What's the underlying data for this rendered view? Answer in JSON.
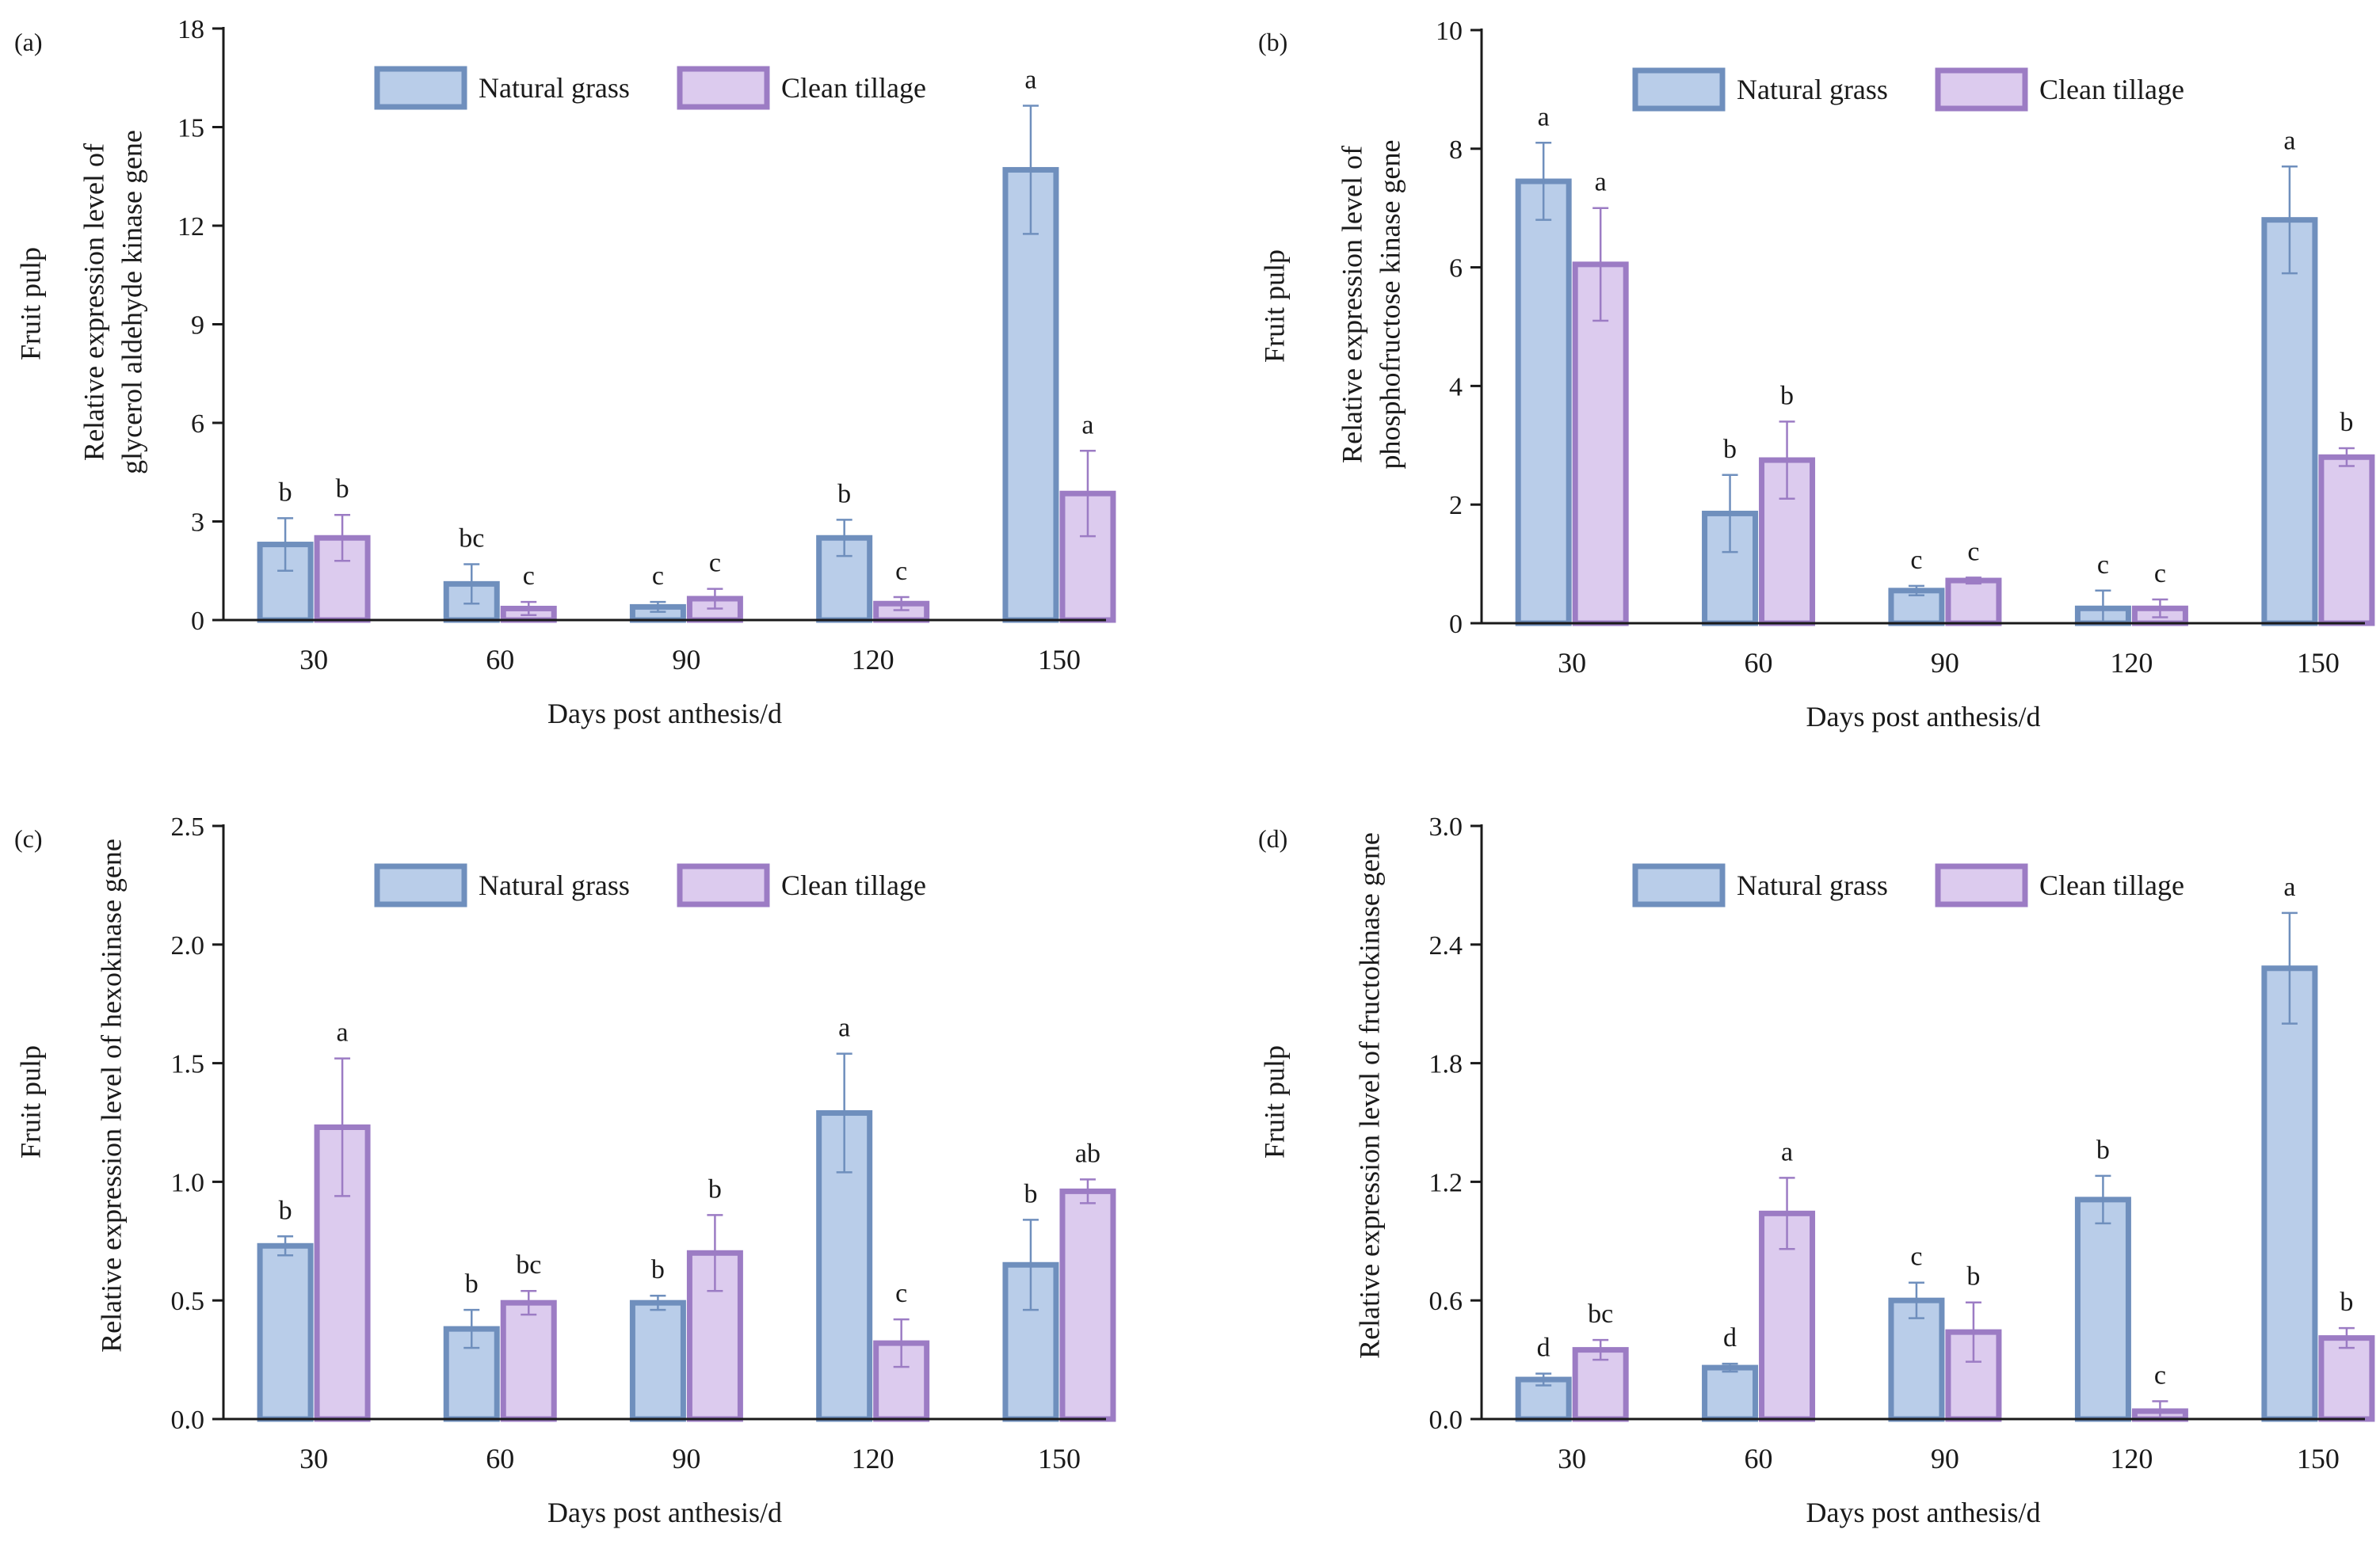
{
  "colors": {
    "natural_fill": "#b9cde9",
    "natural_stroke": "#6f8fbd",
    "clean_fill": "#dccbee",
    "clean_stroke": "#9c7cc4",
    "natural_err": "#6f8fbd",
    "clean_err": "#9c7cc4"
  },
  "chart_data": [
    {
      "type": "bar",
      "panel_label": "(a)",
      "side_label": "Fruit pulp",
      "ylabel_lines": [
        "Relative expression level of",
        "glycerol aldehyde kinase gene"
      ],
      "xlabel": "Days post anthesis/d",
      "categories": [
        "30",
        "60",
        "90",
        "120",
        "150"
      ],
      "ylim": [
        0,
        18
      ],
      "yticks": [
        0,
        3,
        6,
        9,
        12,
        15,
        18
      ],
      "ytick_labels": [
        "0",
        "3",
        "6",
        "9",
        "12",
        "15",
        "18"
      ],
      "legend": "top",
      "series": [
        {
          "name": "Natural grass",
          "values": [
            2.3,
            1.1,
            0.4,
            2.5,
            13.7
          ],
          "errors": [
            0.8,
            0.6,
            0.15,
            0.55,
            1.95
          ],
          "letters": [
            "b",
            "bc",
            "c",
            "b",
            "a"
          ]
        },
        {
          "name": "Clean tillage",
          "values": [
            2.5,
            0.35,
            0.65,
            0.5,
            3.85
          ],
          "errors": [
            0.7,
            0.2,
            0.3,
            0.2,
            1.3
          ],
          "letters": [
            "b",
            "c",
            "c",
            "c",
            "a"
          ]
        }
      ]
    },
    {
      "type": "bar",
      "panel_label": "(b)",
      "side_label": "Fruit pulp",
      "ylabel_lines": [
        "Relative expression level of",
        "phosphofructose kinase gene"
      ],
      "xlabel": "Days post anthesis/d",
      "categories": [
        "30",
        "60",
        "90",
        "120",
        "150"
      ],
      "ylim": [
        0,
        10
      ],
      "yticks": [
        0,
        2,
        4,
        6,
        8,
        10
      ],
      "ytick_labels": [
        "0",
        "2",
        "4",
        "6",
        "8",
        "10"
      ],
      "legend": "top",
      "series": [
        {
          "name": "Natural grass",
          "values": [
            7.45,
            1.85,
            0.55,
            0.25,
            6.8
          ],
          "errors": [
            0.65,
            0.65,
            0.08,
            0.3,
            0.9
          ],
          "letters": [
            "a",
            "b",
            "c",
            "c",
            "a"
          ]
        },
        {
          "name": "Clean tillage",
          "values": [
            6.05,
            2.75,
            0.72,
            0.25,
            2.8
          ],
          "errors": [
            0.95,
            0.65,
            0.05,
            0.15,
            0.15
          ],
          "letters": [
            "a",
            "b",
            "c",
            "c",
            "b"
          ]
        }
      ]
    },
    {
      "type": "bar",
      "panel_label": "(c)",
      "side_label": "Fruit pulp",
      "ylabel_lines": [
        "Relative expression level of hexokinase gene"
      ],
      "xlabel": "Days post anthesis/d",
      "categories": [
        "30",
        "60",
        "90",
        "120",
        "150"
      ],
      "ylim": [
        0,
        2.5
      ],
      "yticks": [
        0,
        0.5,
        1.0,
        1.5,
        2.0,
        2.5
      ],
      "ytick_labels": [
        "0.0",
        "0.5",
        "1.0",
        "1.5",
        "2.0",
        "2.5"
      ],
      "legend": "top",
      "series": [
        {
          "name": "Natural grass",
          "values": [
            0.73,
            0.38,
            0.49,
            1.29,
            0.65
          ],
          "errors": [
            0.04,
            0.08,
            0.03,
            0.25,
            0.19
          ],
          "letters": [
            "b",
            "b",
            "b",
            "a",
            "b"
          ]
        },
        {
          "name": "Clean tillage",
          "values": [
            1.23,
            0.49,
            0.7,
            0.32,
            0.96
          ],
          "errors": [
            0.29,
            0.05,
            0.16,
            0.1,
            0.05
          ],
          "letters": [
            "a",
            "bc",
            "b",
            "c",
            "ab"
          ]
        }
      ]
    },
    {
      "type": "bar",
      "panel_label": "(d)",
      "side_label": "Fruit pulp",
      "ylabel_lines": [
        "Relative expression level of fructokinase gene"
      ],
      "xlabel": "Days post anthesis/d",
      "categories": [
        "30",
        "60",
        "90",
        "120",
        "150"
      ],
      "ylim": [
        0,
        3.0
      ],
      "yticks": [
        0,
        0.6,
        1.2,
        1.8,
        2.4,
        3.0
      ],
      "ytick_labels": [
        "0.0",
        "0.6",
        "1.2",
        "1.8",
        "2.4",
        "3.0"
      ],
      "legend": "top",
      "series": [
        {
          "name": "Natural grass",
          "values": [
            0.2,
            0.26,
            0.6,
            1.11,
            2.28
          ],
          "errors": [
            0.03,
            0.02,
            0.09,
            0.12,
            0.28
          ],
          "letters": [
            "d",
            "d",
            "c",
            "b",
            "a"
          ]
        },
        {
          "name": "Clean tillage",
          "values": [
            0.35,
            1.04,
            0.44,
            0.04,
            0.41
          ],
          "errors": [
            0.05,
            0.18,
            0.15,
            0.05,
            0.05
          ],
          "letters": [
            "bc",
            "a",
            "b",
            "c",
            "b"
          ]
        }
      ]
    }
  ]
}
